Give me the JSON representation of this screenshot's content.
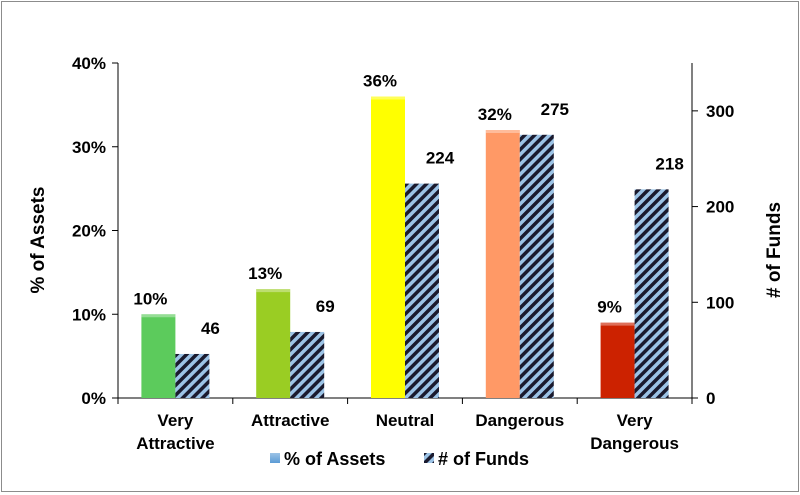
{
  "chart_data": {
    "type": "bar",
    "title": "",
    "categories": [
      [
        "Very",
        "Attractive"
      ],
      [
        "Attractive"
      ],
      [
        "Neutral"
      ],
      [
        "Dangerous"
      ],
      [
        "Very",
        "Dangerous"
      ]
    ],
    "series": [
      {
        "name": "% of Assets",
        "axis": "left",
        "values": [
          10,
          13,
          36,
          32,
          9
        ],
        "labels": [
          "10%",
          "13%",
          "36%",
          "32%",
          "9%"
        ],
        "colors": [
          "#5ccb5c",
          "#9acd23",
          "#ffff00",
          "#ff9966",
          "#cc2200"
        ]
      },
      {
        "name": "# of Funds",
        "axis": "right",
        "values": [
          46,
          69,
          224,
          275,
          218
        ],
        "labels": [
          "46",
          "69",
          "224",
          "275",
          "218"
        ],
        "pattern": "diagonal-stripes",
        "colors": [
          "#1a1a2e",
          "#9cc3e6"
        ]
      }
    ],
    "ylabel": "% of Assets",
    "ylabel_right": "# of Funds",
    "ylim": [
      0,
      40
    ],
    "ylim_right": [
      0,
      350
    ],
    "yticks": [
      0,
      10,
      20,
      30,
      40
    ],
    "ytick_labels": [
      "0%",
      "10%",
      "20%",
      "30%",
      "40%"
    ],
    "yticks_right": [
      0,
      100,
      200,
      300
    ],
    "ytick_labels_right": [
      "0",
      "100",
      "200",
      "300"
    ],
    "grid": false,
    "legend": {
      "placement": "bottom",
      "items": [
        "% of Assets",
        "# of Funds"
      ]
    }
  }
}
